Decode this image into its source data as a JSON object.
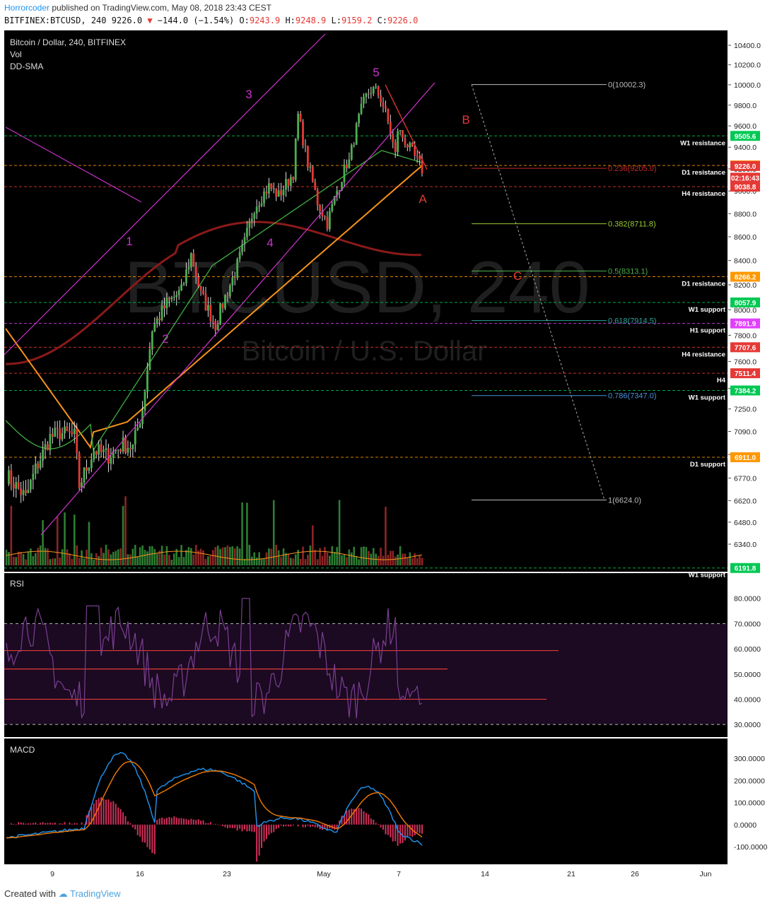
{
  "header": {
    "author": "Horrorcoder",
    "published_text": "published on TradingView.com, May 08, 2018 23:43 CEST",
    "symbol": "BITFINEX:BTCUSD, 240",
    "last": "9226.0",
    "change": "−144.0 (−1.54%)",
    "o_label": "O:",
    "o_val": "9243.9",
    "h_label": "H:",
    "h_val": "9248.9",
    "l_label": "L:",
    "l_val": "9159.2",
    "c_label": "C:",
    "c_val": "9226.0"
  },
  "legend": {
    "title": "Bitcoin / Dollar, 240, BITFINEX",
    "vol": "Vol",
    "ddsma": "DD-SMA"
  },
  "watermark": {
    "big": "BTCUSD, 240",
    "small": "Bitcoin / U.S. Dollar"
  },
  "colors": {
    "background": "#000000",
    "up": "#4caf50",
    "down": "#e53935",
    "wave_channel": "#cc33cc",
    "orange_sma": "#f7931a",
    "darkred_sma": "#8b1a1a",
    "green_sma": "#3fae3f"
  },
  "chart_data": [
    {
      "type": "candlestick",
      "title": "Bitcoin / Dollar, 240, BITFINEX",
      "price_ticks": [
        10400,
        10200,
        10000,
        9800,
        9600,
        9400,
        9200,
        9000,
        8800,
        8600,
        8400,
        8200,
        8000,
        7800,
        7600,
        7400,
        7250,
        7090,
        6930,
        6770,
        6620,
        6480,
        6340
      ],
      "price_range": [
        6230,
        10500
      ],
      "x_ticks": [
        "9",
        "16",
        "23",
        "May",
        "7",
        "14",
        "21",
        "26",
        "Jun"
      ],
      "waves": [
        {
          "label": "1",
          "color": "#cc33cc"
        },
        {
          "label": "2",
          "color": "#cc33cc"
        },
        {
          "label": "3",
          "color": "#cc33cc"
        },
        {
          "label": "4",
          "color": "#cc33cc"
        },
        {
          "label": "5",
          "color": "#cc33cc"
        },
        {
          "label": "A",
          "color": "#e53935"
        },
        {
          "label": "B",
          "color": "#e53935"
        },
        {
          "label": "C",
          "color": "#e53935"
        }
      ],
      "fib_levels": [
        {
          "label": "0(10002.3)",
          "value": 10002.3,
          "color": "#bbbbbb"
        },
        {
          "label": "0.236(9205.0)",
          "value": 9205.0,
          "color": "#c62828"
        },
        {
          "label": "0.382(8711.8)",
          "value": 8711.8,
          "color": "#9acd32"
        },
        {
          "label": "0.5(8313.1)",
          "value": 8313.1,
          "color": "#4caf50"
        },
        {
          "label": "0.618(7914.5)",
          "value": 7914.5,
          "color": "#26a69a"
        },
        {
          "label": "0.786(7347.0)",
          "value": 7347.0,
          "color": "#4a90d9"
        },
        {
          "label": "1(6624.0)",
          "value": 6624.0,
          "color": "#bbbbbb"
        }
      ],
      "levels": [
        {
          "value": 9505.6,
          "label": "9505.6",
          "text": "W1 resistance",
          "color": "#00c853",
          "style": "dashed"
        },
        {
          "value": 9231.1,
          "label": "9231.1",
          "text": "D1 resistance",
          "color": "#ff9800",
          "style": "dashed"
        },
        {
          "value": 9226.0,
          "label": "9226.0",
          "text": "",
          "color": "#e53935",
          "style": "none"
        },
        {
          "value": 9120,
          "label": "02:16:43",
          "text": "",
          "color": "#e53935",
          "style": "none"
        },
        {
          "value": 9038.8,
          "label": "9038.8",
          "text": "H4 resistance",
          "color": "#e53935",
          "style": "dashed"
        },
        {
          "value": 8266.2,
          "label": "8266.2",
          "text": "D1 resistance",
          "color": "#ff9800",
          "style": "dashed"
        },
        {
          "value": 8057.9,
          "label": "8057.9",
          "text": "W1 support",
          "color": "#00c853",
          "style": "dashed"
        },
        {
          "value": 7891.9,
          "label": "7891.9",
          "text": "H1 support",
          "color": "#e040fb",
          "style": "dashed"
        },
        {
          "value": 7707.6,
          "label": "7707.6",
          "text": "H4 resistance",
          "color": "#e53935",
          "style": "dashed"
        },
        {
          "value": 7511.4,
          "label": "7511.4",
          "text": "H4",
          "color": "#e53935",
          "style": "dashed"
        },
        {
          "value": 7384.2,
          "label": "7384.2",
          "text": "W1 support",
          "color": "#00c853",
          "style": "dashed"
        },
        {
          "value": 6911.0,
          "label": "6911.0",
          "text": "D1 support",
          "color": "#ff9800",
          "style": "dashed"
        },
        {
          "value": 6191.8,
          "label": "6191.8",
          "text": "W1 support",
          "color": "#00c853",
          "style": "dashed"
        }
      ]
    },
    {
      "type": "line",
      "title": "RSI",
      "y_ticks": [
        80,
        70,
        60,
        50,
        40,
        30
      ],
      "y_tick_labels": [
        "80.0000",
        "70.0000",
        "60.0000",
        "50.0000",
        "40.0000",
        "30.0000"
      ],
      "ylim": [
        25,
        90
      ],
      "band": [
        30,
        70
      ]
    },
    {
      "type": "line",
      "title": "MACD",
      "y_ticks": [
        300,
        200,
        100,
        0,
        -100
      ],
      "y_tick_labels": [
        "300.0000",
        "200.0000",
        "100.0000",
        "0.0000",
        "-100.0000"
      ],
      "ylim": [
        -180,
        390
      ]
    }
  ],
  "footer": {
    "created": "Created with",
    "brand": "TradingView"
  }
}
